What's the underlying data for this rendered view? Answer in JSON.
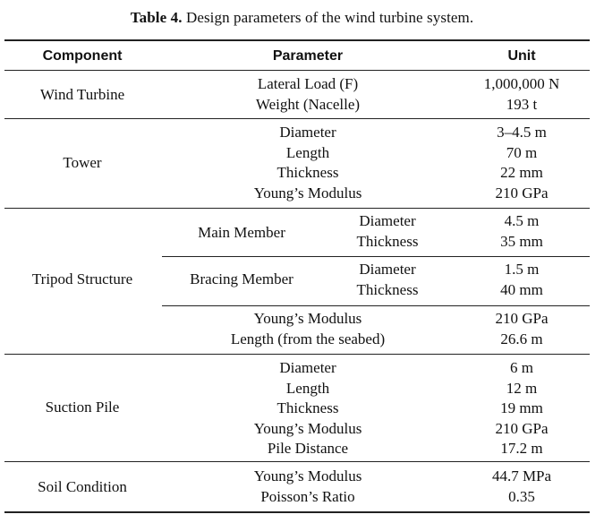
{
  "caption": {
    "label": "Table 4.",
    "text": "Design parameters of the wind turbine system."
  },
  "header": {
    "component": "Component",
    "parameter": "Parameter",
    "unit": "Unit"
  },
  "rows": {
    "wind_turbine": {
      "component": "Wind Turbine",
      "parameters": [
        "Lateral Load (F)",
        "Weight (Nacelle)"
      ],
      "units": [
        "1,000,000 N",
        "193 t"
      ]
    },
    "tower": {
      "component": "Tower",
      "parameters": [
        "Diameter",
        "Length",
        "Thickness",
        "Young’s Modulus"
      ],
      "units": [
        "3–4.5 m",
        "70 m",
        "22 mm",
        "210 GPa"
      ]
    },
    "tripod": {
      "component": "Tripod Structure",
      "main_member": {
        "label": "Main Member",
        "parameters": [
          "Diameter",
          "Thickness"
        ],
        "units": [
          "4.5 m",
          "35 mm"
        ]
      },
      "bracing_member": {
        "label": "Bracing Member",
        "parameters": [
          "Diameter",
          "Thickness"
        ],
        "units": [
          "1.5 m",
          "40 mm"
        ]
      },
      "parameters": [
        "Young’s Modulus",
        "Length (from the seabed)"
      ],
      "units": [
        "210 GPa",
        "26.6 m"
      ]
    },
    "suction_pile": {
      "component": "Suction Pile",
      "parameters": [
        "Diameter",
        "Length",
        "Thickness",
        "Young’s Modulus",
        "Pile Distance"
      ],
      "units": [
        "6 m",
        "12 m",
        "19 mm",
        "210 GPa",
        "17.2 m"
      ]
    },
    "soil": {
      "component": "Soil Condition",
      "parameters": [
        "Young’s Modulus",
        "Poisson’s Ratio"
      ],
      "units": [
        "44.7 MPa",
        "0.35"
      ]
    }
  }
}
